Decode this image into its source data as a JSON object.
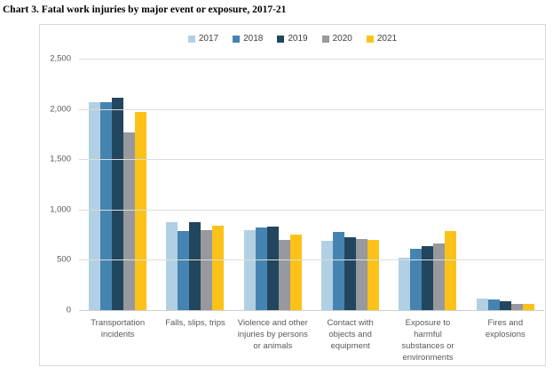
{
  "title": "Chart 3. Fatal work injuries by major event or exposure, 2017-21",
  "colors": {
    "grid": "#dcdcdc",
    "axis_text": "#595959",
    "legend_text": "#404040",
    "chart_border": "#d9d9d9"
  },
  "chart_data": {
    "type": "bar",
    "title": "Chart 3. Fatal work injuries by major event or exposure, 2017-21",
    "xlabel": "",
    "ylabel": "",
    "ylim": [
      0,
      2500
    ],
    "grid": true,
    "legend_position": "top-center",
    "categories": [
      "Transportation\nincidents",
      "Falls, slips, trips",
      "Violence and other\ninjuries by persons\nor animals",
      "Contact with\nobjects and\nequipment",
      "Exposure to\nharmful\nsubstances or\nenvironments",
      "Fires and\nexplosions"
    ],
    "series": [
      {
        "name": "2017",
        "color": "#b1d0e3",
        "values": [
          2077,
          887,
          807,
          695,
          531,
          123
        ]
      },
      {
        "name": "2018",
        "color": "#4584b1",
        "values": [
          2080,
          791,
          828,
          786,
          621,
          115
        ]
      },
      {
        "name": "2019",
        "color": "#22465e",
        "values": [
          2122,
          880,
          841,
          732,
          642,
          99
        ]
      },
      {
        "name": "2020",
        "color": "#97999e",
        "values": [
          1778,
          805,
          705,
          716,
          672,
          72
        ]
      },
      {
        "name": "2021",
        "color": "#fcc219",
        "values": [
          1982,
          850,
          761,
          705,
          798,
          72
        ]
      }
    ],
    "yticks": [
      {
        "value": 0,
        "label": "0"
      },
      {
        "value": 500,
        "label": "500"
      },
      {
        "value": 1000,
        "label": "1,000"
      },
      {
        "value": 1500,
        "label": "1,500"
      },
      {
        "value": 2000,
        "label": "2,000"
      },
      {
        "value": 2500,
        "label": "2,500"
      }
    ]
  }
}
